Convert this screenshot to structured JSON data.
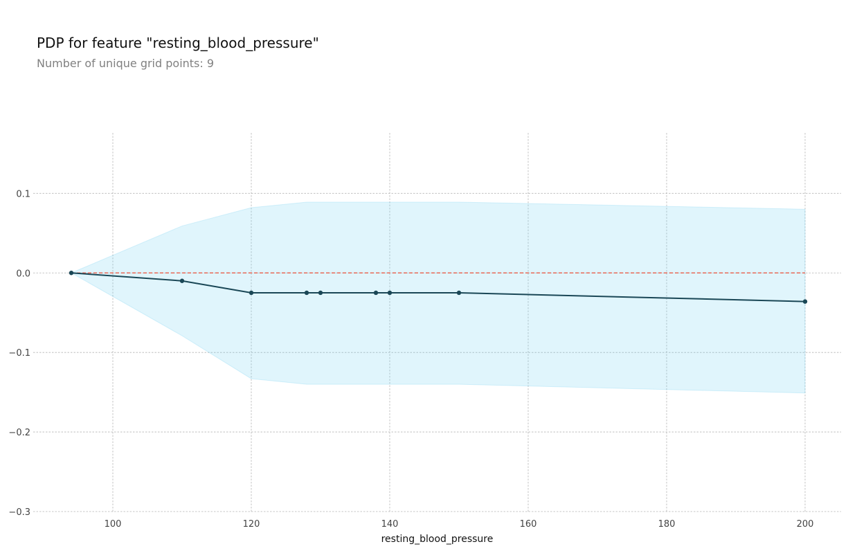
{
  "chart_data": {
    "type": "line",
    "title": "PDP for feature \"resting_blood_pressure\"",
    "subtitle": "Number of unique grid points: 9",
    "xlabel": "resting_blood_pressure",
    "ylabel": "",
    "xlim": [
      88.5,
      205.2
    ],
    "ylim": [
      -0.3,
      0.176
    ],
    "x_ticks": [
      100,
      120,
      140,
      160,
      180,
      200
    ],
    "x_tick_labels": [
      "100",
      "120",
      "140",
      "160",
      "180",
      "200"
    ],
    "y_ticks": [
      0.1,
      0.0,
      -0.1,
      -0.2,
      -0.3
    ],
    "y_tick_labels": [
      "0.1",
      "0.0",
      "−0.1",
      "−0.2",
      "−0.3"
    ],
    "grid": true,
    "x": [
      94,
      110,
      120,
      128,
      130,
      138,
      140,
      150,
      200
    ],
    "series": [
      {
        "values": [
          0.0,
          -0.01,
          -0.025,
          -0.025,
          -0.025,
          -0.025,
          -0.025,
          -0.025,
          -0.036
        ],
        "color": "#1a4756"
      }
    ],
    "band": {
      "upper": [
        0.0,
        0.059,
        0.082,
        0.089,
        0.089,
        0.089,
        0.089,
        0.089,
        0.08
      ],
      "lower": [
        0.0,
        -0.079,
        -0.133,
        -0.14,
        -0.14,
        -0.14,
        -0.14,
        -0.14,
        -0.151
      ],
      "color": "#66ccee"
    },
    "reference_line": {
      "y": 0.0,
      "color": "#ec4f37"
    }
  }
}
